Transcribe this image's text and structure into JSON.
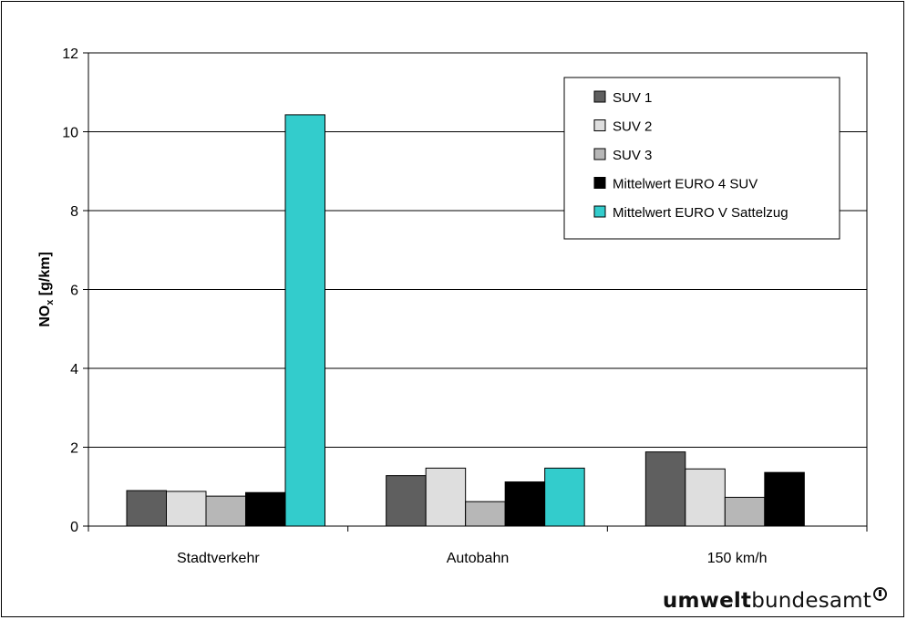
{
  "chart_data": {
    "type": "bar",
    "categories": [
      "Stadtverkehr",
      "Autobahn",
      "150 km/h"
    ],
    "series": [
      {
        "name": "SUV 1",
        "color": "#5f5f5f",
        "values": [
          0.9,
          1.28,
          1.88
        ]
      },
      {
        "name": "SUV 2",
        "color": "#dedede",
        "values": [
          0.88,
          1.47,
          1.45
        ]
      },
      {
        "name": "SUV 3",
        "color": "#b7b7b7",
        "values": [
          0.76,
          0.62,
          0.73
        ]
      },
      {
        "name": "Mittelwert EURO 4 SUV",
        "color": "#000000",
        "values": [
          0.85,
          1.12,
          1.36
        ]
      },
      {
        "name": "Mittelwert EURO V Sattelzug",
        "color": "#33cccc",
        "values": [
          10.43,
          1.47,
          null
        ]
      }
    ],
    "ylabel_main": "NO",
    "ylabel_sub": "x",
    "ylabel_unit": " [g/km]",
    "ylim": [
      0,
      12
    ],
    "yticks": [
      "0",
      "2",
      "4",
      "6",
      "8",
      "10",
      "12"
    ],
    "grid": true,
    "legend_position": "top-right"
  },
  "logo": {
    "bold": "umwelt",
    "regular": "bundesamt"
  }
}
